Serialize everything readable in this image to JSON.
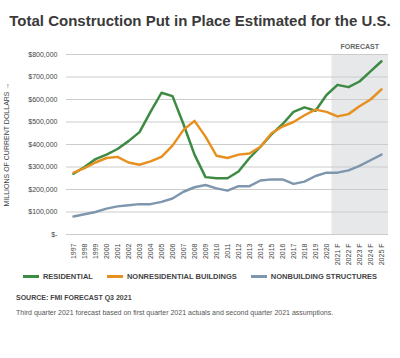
{
  "chart_data": {
    "type": "line",
    "title": "Total Construction Put in Place Estimated for the U.S.",
    "y_label": "MILLIONS OF CURRENT DOLLARS",
    "source": "SOURCE: FMI FORECAST Q3 2021",
    "note": "Third quarter 2021 forecast based on first quarter 2021 actuals and second quarter 2021 assumptions.",
    "annotations": [
      {
        "text": "FORECAST",
        "x_start": "2021 F",
        "x_end": "2025 F"
      }
    ],
    "categories": [
      "1997",
      "1998",
      "1999",
      "2000",
      "2001",
      "2002",
      "2003",
      "2004",
      "2005",
      "2006",
      "2007",
      "2008",
      "2009",
      "2010",
      "2011",
      "2012",
      "2013",
      "2014",
      "2015",
      "2016",
      "2017",
      "2018",
      "2019",
      "2020",
      "2021 F",
      "2022 F",
      "2023 F",
      "2024 F",
      "2025 F"
    ],
    "series": [
      {
        "name": "RESIDENTIAL",
        "color": "#3d8b43",
        "values": [
          270000,
          300000,
          335000,
          355000,
          380000,
          415000,
          455000,
          545000,
          630000,
          615000,
          490000,
          355000,
          255000,
          250000,
          250000,
          280000,
          340000,
          390000,
          445000,
          490000,
          545000,
          565000,
          550000,
          620000,
          665000,
          655000,
          680000,
          725000,
          770000
        ]
      },
      {
        "name": "NONRESIDENTIAL BUILDINGS",
        "color": "#e8901f",
        "values": [
          275000,
          295000,
          320000,
          340000,
          345000,
          320000,
          310000,
          325000,
          345000,
          395000,
          465000,
          505000,
          435000,
          350000,
          340000,
          355000,
          360000,
          390000,
          450000,
          480000,
          500000,
          530000,
          555000,
          545000,
          525000,
          535000,
          570000,
          600000,
          645000
        ]
      },
      {
        "name": "NONBUILDING STRUCTURES",
        "color": "#7f97ae",
        "values": [
          80000,
          90000,
          100000,
          115000,
          125000,
          130000,
          135000,
          135000,
          145000,
          160000,
          190000,
          210000,
          220000,
          205000,
          195000,
          215000,
          215000,
          240000,
          245000,
          245000,
          225000,
          235000,
          260000,
          275000,
          275000,
          285000,
          305000,
          330000,
          355000
        ]
      }
    ],
    "ylim": [
      0,
      800000
    ],
    "yticks": [
      {
        "value": 0,
        "label": "$-"
      },
      {
        "value": 100000,
        "label": "$100,000"
      },
      {
        "value": 200000,
        "label": "$200,000"
      },
      {
        "value": 300000,
        "label": "$300,000"
      },
      {
        "value": 400000,
        "label": "$400,000"
      },
      {
        "value": 500000,
        "label": "$500,000"
      },
      {
        "value": 600000,
        "label": "$600,000"
      },
      {
        "value": 700000,
        "label": "$700,000"
      },
      {
        "value": 800000,
        "label": "$800,000"
      }
    ],
    "grid": true,
    "legend": "bottom"
  }
}
